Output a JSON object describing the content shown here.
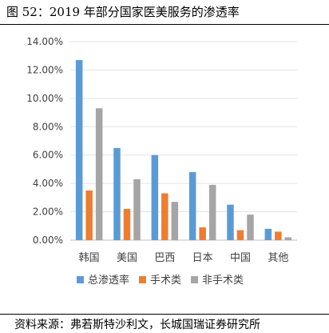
{
  "figure": {
    "title": "图 52：2019 年部分国家医美服务的渗透率",
    "source": "资料来源：弗若斯特沙利文，长城国瑞证券研究所"
  },
  "chart_data": {
    "type": "bar",
    "categories": [
      "韩国",
      "美国",
      "巴西",
      "日本",
      "中国",
      "其他"
    ],
    "series": [
      {
        "name": "总渗透率",
        "color": "#5b9bd5",
        "values": [
          12.7,
          6.5,
          6.0,
          4.8,
          2.5,
          0.8
        ]
      },
      {
        "name": "手术类",
        "color": "#ed7d31",
        "values": [
          3.5,
          2.2,
          3.3,
          0.9,
          0.7,
          0.6
        ]
      },
      {
        "name": "非手术类",
        "color": "#a5a5a5",
        "values": [
          9.3,
          4.3,
          2.7,
          3.9,
          1.8,
          0.2
        ]
      }
    ],
    "ylim": [
      0,
      14
    ],
    "yticks": [
      "0.00%",
      "2.00%",
      "4.00%",
      "6.00%",
      "8.00%",
      "10.00%",
      "12.00%",
      "14.00%"
    ],
    "grid": true,
    "legend_position": "bottom"
  }
}
